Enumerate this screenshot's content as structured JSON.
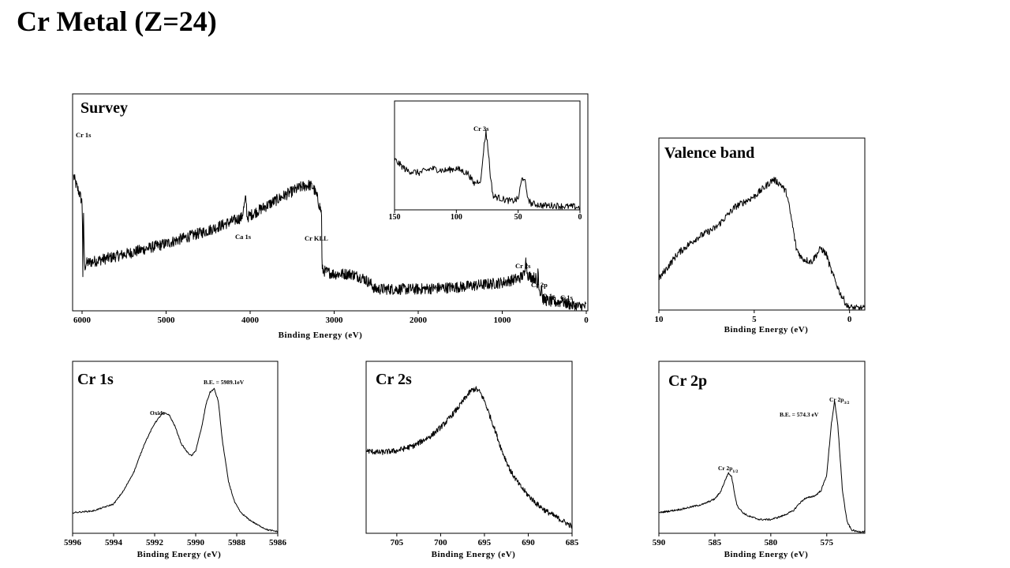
{
  "page": {
    "title": "Cr Metal (Z=24)"
  },
  "chart_data": [
    {
      "id": "survey",
      "type": "line",
      "title": "Survey",
      "xlabel": "Binding Energy (eV)",
      "ylabel": "",
      "xlim": [
        6000,
        0
      ],
      "ylim": [
        0,
        100
      ],
      "grid": false,
      "noise": 2.6,
      "xticks": [
        6000,
        5000,
        4000,
        3000,
        2000,
        1000,
        0
      ],
      "xticklabels": [
        "6000",
        "5000",
        "4000",
        "3000",
        "2000",
        "1000",
        "0"
      ],
      "x": [
        6100,
        6070,
        6030,
        6000,
        5995,
        5990,
        5985,
        5970,
        5950,
        5500,
        5000,
        4500,
        4100,
        4050,
        4040,
        4035,
        4000,
        3600,
        3400,
        3300,
        3250,
        3200,
        3150,
        3145,
        3100,
        3000,
        2800,
        2650,
        2550,
        2520,
        2000,
        1500,
        1000,
        800,
        730,
        720,
        715,
        700,
        680,
        600,
        580,
        575,
        560,
        540,
        532,
        525,
        500,
        400,
        300,
        286,
        280,
        200,
        100,
        0
      ],
      "y": [
        62,
        58,
        54,
        50,
        40,
        10,
        48,
        20,
        22,
        26,
        31,
        37,
        43,
        52,
        46,
        43,
        44,
        53,
        57,
        58,
        57,
        52,
        45,
        19,
        18,
        17,
        17,
        15,
        12,
        10,
        10,
        11,
        13,
        15,
        17,
        28,
        22,
        17,
        16,
        15,
        10,
        20,
        10,
        8,
        14,
        6,
        5,
        4,
        4,
        7,
        4,
        3,
        2,
        2
      ],
      "annotations": [
        {
          "text": "Cr 1s",
          "x": 6000
        },
        {
          "text": "Ca 1s",
          "x": 4038
        },
        {
          "text": "Cr KLL",
          "x": 3300
        },
        {
          "text": "Cr 2s",
          "x": 700
        },
        {
          "text": "Cr 2p",
          "x": 530
        },
        {
          "text": "O 1s",
          "x": 460
        },
        {
          "text": "C 1s",
          "x": 280
        }
      ],
      "inset": {
        "xlim": [
          150,
          0
        ],
        "ylim": [
          0,
          100
        ],
        "noise": 3,
        "xticks": [
          150,
          100,
          50,
          0
        ],
        "xticklabels": [
          "150",
          "100",
          "50",
          "0"
        ],
        "x": [
          150,
          140,
          130,
          120,
          110,
          100,
          90,
          86,
          80,
          78,
          76,
          74,
          72,
          70,
          68,
          60,
          55,
          50,
          47,
          45,
          43,
          40,
          35,
          30,
          20,
          10,
          5,
          0
        ],
        "y": [
          46,
          36,
          34,
          38,
          36,
          38,
          33,
          24,
          28,
          55,
          72,
          52,
          26,
          12,
          12,
          9,
          8,
          10,
          28,
          30,
          14,
          6,
          5,
          4,
          4,
          3,
          3,
          2
        ],
        "annotations": [
          {
            "text": "Cr 3s",
            "x": 75
          }
        ]
      }
    },
    {
      "id": "valence",
      "type": "line",
      "title": "Valence band",
      "xlabel": "Binding Energy (eV)",
      "ylabel": "",
      "xlim": [
        10,
        -0.8
      ],
      "ylim": [
        0,
        100
      ],
      "grid": false,
      "noise": 2,
      "xticks": [
        10,
        5,
        0
      ],
      "xticklabels": [
        "10",
        "5",
        "0"
      ],
      "x": [
        10,
        9,
        8,
        7,
        6,
        5,
        4.5,
        4,
        3.6,
        3.3,
        3,
        2.8,
        2.5,
        2,
        1.5,
        1.2,
        1,
        0.5,
        0.1,
        -0.3,
        -0.6
      ],
      "y": [
        18,
        33,
        42,
        48,
        60,
        66,
        71,
        76,
        73,
        68,
        50,
        36,
        30,
        28,
        36,
        32,
        24,
        10,
        2,
        1,
        1
      ]
    },
    {
      "id": "cr1s",
      "type": "line",
      "title": "Cr 1s",
      "xlabel": "Binding Energy (eV)",
      "ylabel": "",
      "xlim": [
        5996,
        5986
      ],
      "ylim": [
        0,
        100
      ],
      "grid": false,
      "noise": 0.4,
      "xticks": [
        5996,
        5994,
        5992,
        5990,
        5988,
        5986
      ],
      "xticklabels": [
        "5996",
        "5994",
        "5992",
        "5990",
        "5988",
        "5986"
      ],
      "x": [
        5996,
        5995,
        5994,
        5993.5,
        5993,
        5992.5,
        5992,
        5991.6,
        5991.3,
        5991,
        5990.7,
        5990.4,
        5990.2,
        5990,
        5989.7,
        5989.5,
        5989.3,
        5989.1,
        5988.9,
        5988.7,
        5988.4,
        5988.1,
        5987.8,
        5987.4,
        5987,
        5986.5,
        5986
      ],
      "y": [
        12,
        13,
        17,
        25,
        36,
        52,
        64,
        70,
        69,
        62,
        52,
        47,
        45,
        48,
        62,
        75,
        82,
        84,
        77,
        54,
        30,
        18,
        12,
        8,
        5,
        2,
        1
      ],
      "annotations": [
        {
          "text": "Oxide",
          "x": 5991.6
        },
        {
          "text": "B.E. = 5989.1eV",
          "x": 5989.3
        }
      ]
    },
    {
      "id": "cr2s",
      "type": "line",
      "title": "Cr 2s",
      "xlabel": "Binding Energy (eV)",
      "ylabel": "",
      "xlim": [
        708.5,
        685
      ],
      "ylim": [
        0,
        100
      ],
      "grid": false,
      "noise": 1.6,
      "xticks": [
        705,
        700,
        695,
        690,
        685
      ],
      "xticklabels": [
        "705",
        "700",
        "695",
        "690",
        "685"
      ],
      "x": [
        708.5,
        707,
        705,
        703,
        701,
        699.5,
        698,
        697,
        696.5,
        696,
        695.5,
        695,
        694,
        693,
        692,
        691,
        690,
        689,
        688,
        687,
        686,
        685
      ],
      "y": [
        48,
        47,
        48,
        51,
        57,
        64,
        73,
        80,
        83,
        84,
        82,
        77,
        63,
        48,
        36,
        28,
        22,
        17,
        13,
        10,
        7,
        4
      ]
    },
    {
      "id": "cr2p",
      "type": "line",
      "title": "Cr 2p",
      "xlabel": "Binding Energy (eV)",
      "ylabel": "",
      "xlim": [
        590,
        571.6
      ],
      "ylim": [
        0,
        100
      ],
      "grid": false,
      "noise": 0.5,
      "xticks": [
        590,
        585,
        580,
        575
      ],
      "xticklabels": [
        "590",
        "585",
        "580",
        "575"
      ],
      "x": [
        590,
        588,
        586,
        585,
        584.5,
        584,
        583.8,
        583.5,
        583.2,
        583,
        582.5,
        582,
        581,
        580,
        579,
        578,
        577.5,
        577,
        576.5,
        576,
        575.5,
        575,
        574.6,
        574.3,
        574,
        573.6,
        573.2,
        572.8,
        572.3,
        571.6
      ],
      "y": [
        12,
        14,
        17,
        20,
        24,
        32,
        35,
        33,
        22,
        16,
        12,
        10,
        8,
        8,
        10,
        13,
        17,
        20,
        21,
        22,
        25,
        34,
        63,
        77,
        62,
        25,
        7,
        2,
        1,
        1
      ],
      "annotations": [
        {
          "text": "Cr 2p",
          "sub": "1/2",
          "x": 583.9
        },
        {
          "text": "B.E. = 574.3  eV",
          "x": 576.2
        },
        {
          "text": "Cr 2p",
          "sub": "3/2",
          "x": 574.3
        }
      ]
    }
  ]
}
